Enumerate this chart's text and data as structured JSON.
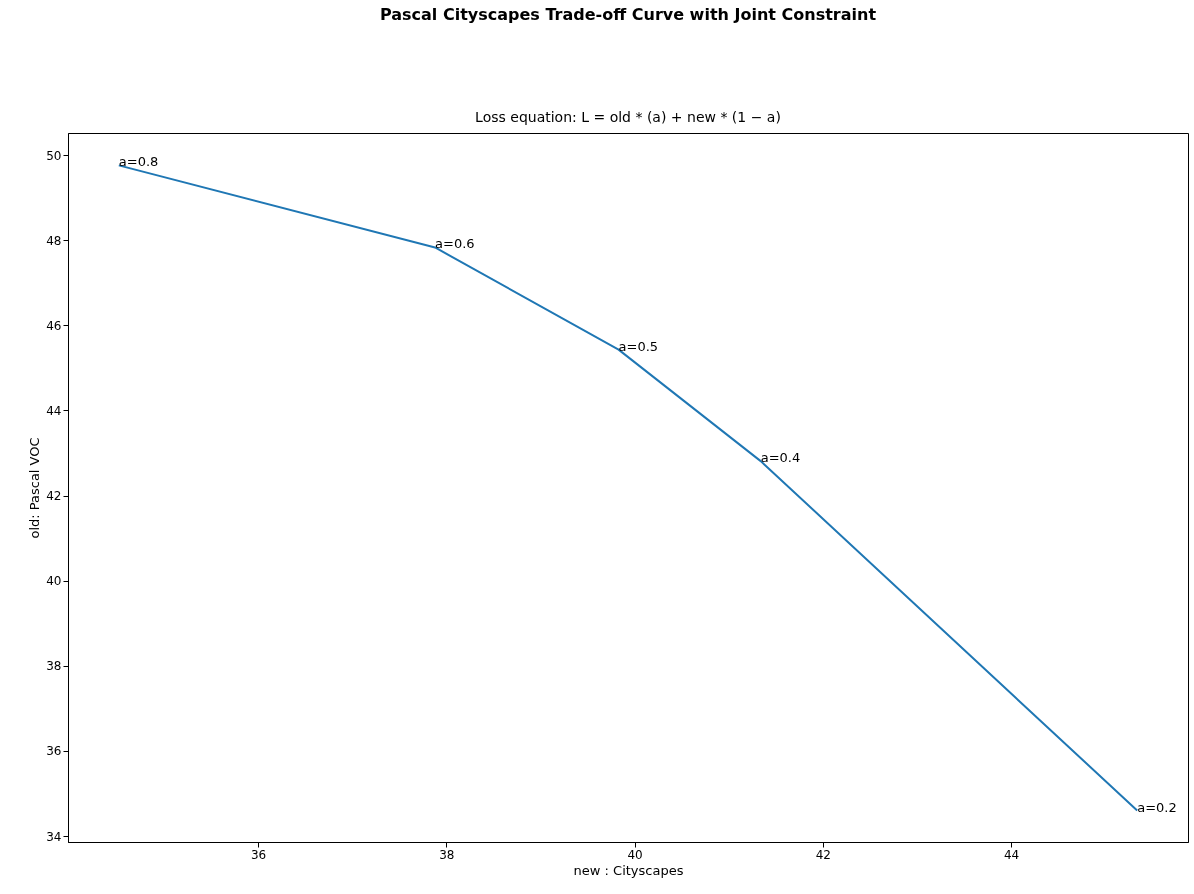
{
  "chart_data": {
    "type": "line",
    "title": "Pascal Cityscapes Trade-off Curve with Joint Constraint",
    "subtitle": "Loss equation: L = old * (a) + new * (1 − a)",
    "xlabel": "new : Cityscapes",
    "ylabel": "old: Pascal VOC",
    "x": [
      34.52,
      37.88,
      39.83,
      41.34,
      45.34
    ],
    "series": [
      {
        "color": "#1f77b4",
        "values": [
          49.76,
          47.83,
          45.43,
          42.81,
          34.6
        ]
      }
    ],
    "xlim": [
      33.98,
      45.88
    ],
    "ylim": [
      33.86,
      50.52
    ],
    "xticks": [
      36,
      38,
      40,
      42,
      44
    ],
    "yticks": [
      34,
      36,
      38,
      40,
      42,
      44,
      46,
      48,
      50
    ],
    "grid": false,
    "annotations": [
      {
        "text": "a=0.8",
        "x": 34.52,
        "y": 49.76
      },
      {
        "text": "a=0.6",
        "x": 37.88,
        "y": 47.83
      },
      {
        "text": "a=0.5",
        "x": 39.83,
        "y": 45.43
      },
      {
        "text": "a=0.4",
        "x": 41.34,
        "y": 42.81
      },
      {
        "text": "a=0.2",
        "x": 45.34,
        "y": 34.6
      }
    ]
  }
}
